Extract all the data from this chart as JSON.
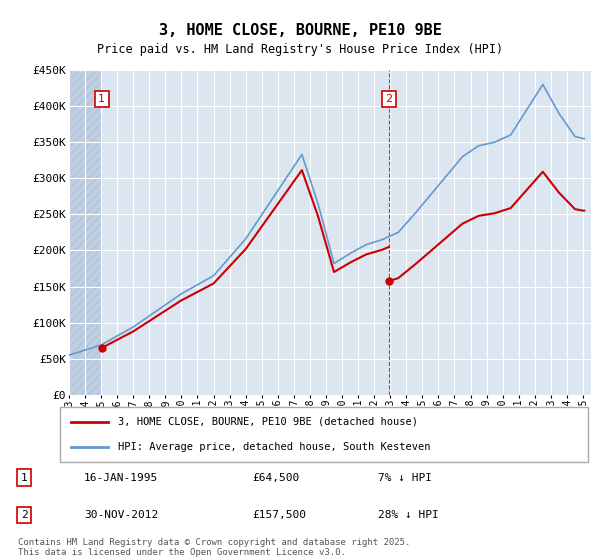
{
  "title": "3, HOME CLOSE, BOURNE, PE10 9BE",
  "subtitle": "Price paid vs. HM Land Registry's House Price Index (HPI)",
  "ylim": [
    0,
    450000
  ],
  "yticks": [
    0,
    50000,
    100000,
    150000,
    200000,
    250000,
    300000,
    350000,
    400000,
    450000
  ],
  "ytick_labels": [
    "£0",
    "£50K",
    "£100K",
    "£150K",
    "£200K",
    "£250K",
    "£300K",
    "£350K",
    "£400K",
    "£450K"
  ],
  "legend_entries": [
    "3, HOME CLOSE, BOURNE, PE10 9BE (detached house)",
    "HPI: Average price, detached house, South Kesteven"
  ],
  "legend_colors": [
    "#cc0000",
    "#6699cc"
  ],
  "annotation1_date": "16-JAN-1995",
  "annotation1_price": "£64,500",
  "annotation1_hpi": "7% ↓ HPI",
  "annotation2_date": "30-NOV-2012",
  "annotation2_price": "£157,500",
  "annotation2_hpi": "28% ↓ HPI",
  "footer": "Contains HM Land Registry data © Crown copyright and database right 2025.\nThis data is licensed under the Open Government Licence v3.0.",
  "background_color": "#dce6f1",
  "hatch_color": "#c0cfe0",
  "sale1_x": 1995.04,
  "sale1_y": 64500,
  "sale2_x": 2012.92,
  "sale2_y": 157500,
  "xlim": [
    1993,
    2025.5
  ],
  "xticks": [
    1993,
    1994,
    1995,
    1996,
    1997,
    1998,
    1999,
    2000,
    2001,
    2002,
    2003,
    2004,
    2005,
    2006,
    2007,
    2008,
    2009,
    2010,
    2011,
    2012,
    2013,
    2014,
    2015,
    2016,
    2017,
    2018,
    2019,
    2020,
    2021,
    2022,
    2023,
    2024,
    2025
  ]
}
